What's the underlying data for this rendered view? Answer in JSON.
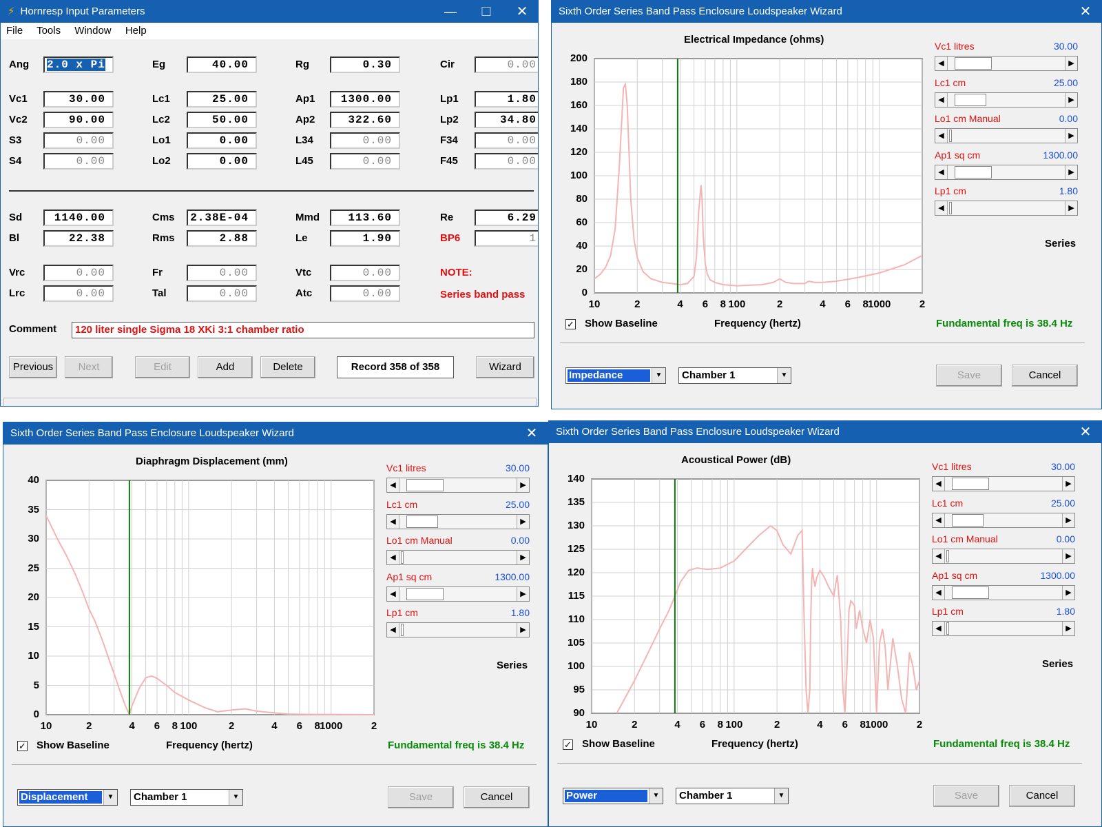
{
  "input_window": {
    "title": "Hornresp   Input Parameters",
    "menu": [
      "File",
      "Tools",
      "Window",
      "Help"
    ],
    "rows1": [
      [
        {
          "l": "Ang",
          "v": "2.0 x Pi",
          "sel": true
        },
        {
          "l": "Eg",
          "v": "40.00"
        },
        {
          "l": "Rg",
          "v": "0.30"
        },
        {
          "l": "Cir",
          "v": "0.00",
          "dim": true
        }
      ]
    ],
    "rows2": [
      [
        {
          "l": "Vc1",
          "v": "30.00"
        },
        {
          "l": "Lc1",
          "v": "25.00"
        },
        {
          "l": "Ap1",
          "v": "1300.00"
        },
        {
          "l": "Lp1",
          "v": "1.80"
        }
      ],
      [
        {
          "l": "Vc2",
          "v": "90.00"
        },
        {
          "l": "Lc2",
          "v": "50.00"
        },
        {
          "l": "Ap2",
          "v": "322.60"
        },
        {
          "l": "Lp2",
          "v": "34.80"
        }
      ],
      [
        {
          "l": "S3",
          "v": "0.00",
          "dim": true
        },
        {
          "l": "Lo1",
          "v": "0.00"
        },
        {
          "l": "L34",
          "v": "0.00",
          "dim": true
        },
        {
          "l": "F34",
          "v": "0.00",
          "dim": true
        }
      ],
      [
        {
          "l": "S4",
          "v": "0.00",
          "dim": true
        },
        {
          "l": "Lo2",
          "v": "0.00"
        },
        {
          "l": "L45",
          "v": "0.00",
          "dim": true
        },
        {
          "l": "F45",
          "v": "0.00",
          "dim": true
        }
      ]
    ],
    "rows3": [
      [
        {
          "l": "Sd",
          "v": "1140.00"
        },
        {
          "l": "Cms",
          "v": "2.38E-04"
        },
        {
          "l": "Mmd",
          "v": "113.60"
        },
        {
          "l": "Re",
          "v": "6.29"
        }
      ],
      [
        {
          "l": "Bl",
          "v": "22.38"
        },
        {
          "l": "Rms",
          "v": "2.88"
        },
        {
          "l": "Le",
          "v": "1.90"
        },
        {
          "l": "BP6",
          "v": "1",
          "red": true,
          "dim": true
        }
      ]
    ],
    "rows4": [
      [
        {
          "l": "Vrc",
          "v": "0.00",
          "dim": true
        },
        {
          "l": "Fr",
          "v": "0.00",
          "dim": true
        },
        {
          "l": "Vtc",
          "v": "0.00",
          "dim": true
        }
      ],
      [
        {
          "l": "Lrc",
          "v": "0.00",
          "dim": true
        },
        {
          "l": "Tal",
          "v": "0.00",
          "dim": true
        },
        {
          "l": "Atc",
          "v": "0.00",
          "dim": true
        }
      ]
    ],
    "note_label": "NOTE:",
    "note_text": "Series band pass",
    "comment_label": "Comment",
    "comment": "120 liter single Sigma 18 XKi 3:1 chamber ratio",
    "buttons": {
      "previous": "Previous",
      "next": "Next",
      "edit": "Edit",
      "add": "Add",
      "delete": "Delete",
      "wizard": "Wizard"
    },
    "record": "Record 358 of 358"
  },
  "wizard_title": "Sixth Order Series Band Pass Enclosure Loudspeaker Wizard",
  "controls": [
    {
      "label": "Vc1  litres",
      "value": "30.00"
    },
    {
      "label": "Lc1  cm",
      "value": "25.00"
    },
    {
      "label": "Lo1  cm  Manual",
      "value": "0.00"
    },
    {
      "label": "Ap1  sq cm",
      "value": "1300.00"
    },
    {
      "label": "Lp1  cm",
      "value": "1.80"
    }
  ],
  "series_label": "Series",
  "show_baseline": "Show Baseline",
  "freq_label": "Frequency (hertz)",
  "fundamental": "Fundamental freq is 38.4 Hz",
  "save": "Save",
  "cancel": "Cancel",
  "chamber": "Chamber 1",
  "x_ticks": [
    "10",
    "2",
    "4",
    "6",
    "8",
    "100",
    "2",
    "4",
    "6",
    "8",
    "1000",
    "2"
  ],
  "colors": {
    "titlebar": "#1560b0",
    "curve": "#f4b4b4",
    "marker": "#0a7a0a",
    "label_red": "#e01010",
    "value_blue": "#1a4fd8"
  },
  "chart_data": [
    {
      "type": "line",
      "title": "Electrical Impedance (ohms)",
      "xlabel": "Frequency (hertz)",
      "ylabel": "",
      "x_scale": "log",
      "xlim": [
        10,
        2000
      ],
      "ylim": [
        0,
        200
      ],
      "y_ticks": [
        "200",
        "180",
        "160",
        "140",
        "120",
        "100",
        "80",
        "60",
        "40",
        "20",
        "0"
      ],
      "marker_x": 38.4,
      "mode": "Impedance",
      "x": [
        10,
        11,
        12,
        13,
        14,
        15,
        16,
        16.5,
        17,
        17.5,
        18,
        19,
        20,
        22,
        25,
        30,
        35,
        40,
        45,
        50,
        52,
        54,
        56,
        57,
        58,
        60,
        62,
        65,
        70,
        80,
        90,
        100,
        120,
        150,
        180,
        200,
        220,
        250,
        300,
        320,
        350,
        400,
        500,
        700,
        1000,
        1500,
        2000
      ],
      "y": [
        12,
        16,
        22,
        32,
        55,
        110,
        175,
        178,
        160,
        120,
        80,
        45,
        30,
        18,
        12,
        9,
        8,
        7,
        8,
        14,
        30,
        70,
        92,
        80,
        50,
        25,
        16,
        11,
        9,
        7,
        6.5,
        6,
        6.5,
        7,
        9,
        12,
        9,
        8,
        8,
        10,
        9,
        9,
        10,
        13,
        17,
        24,
        32
      ]
    },
    {
      "type": "line",
      "title": "Diaphragm Displacement (mm)",
      "xlabel": "Frequency (hertz)",
      "ylabel": "",
      "x_scale": "log",
      "xlim": [
        10,
        2000
      ],
      "ylim": [
        0,
        40
      ],
      "y_ticks": [
        "40",
        "35",
        "30",
        "25",
        "20",
        "15",
        "10",
        "5",
        "0"
      ],
      "marker_x": 38.4,
      "mode": "Displacement",
      "x": [
        10,
        12,
        14,
        16,
        18,
        20,
        22,
        25,
        28,
        30,
        33,
        36,
        38.4,
        40,
        45,
        50,
        55,
        60,
        70,
        80,
        100,
        130,
        160,
        200,
        250,
        300,
        400,
        500,
        700,
        1000,
        2000
      ],
      "y": [
        34,
        30,
        27,
        24,
        21,
        18,
        16,
        12.5,
        9,
        7,
        4,
        1.5,
        0,
        1.5,
        4.5,
        6.3,
        6.6,
        6.2,
        5,
        3.8,
        2.5,
        1.2,
        0.5,
        0.8,
        1,
        0.6,
        0.3,
        0.1,
        0.05,
        0.02,
        0
      ]
    },
    {
      "type": "line",
      "title": "Acoustical Power (dB)",
      "xlabel": "Frequency (hertz)",
      "ylabel": "",
      "x_scale": "log",
      "xlim": [
        10,
        2000
      ],
      "ylim": [
        90,
        140
      ],
      "y_ticks": [
        "140",
        "135",
        "130",
        "125",
        "120",
        "115",
        "110",
        "105",
        "100",
        "95",
        "90"
      ],
      "marker_x": 38.4,
      "mode": "Power",
      "x": [
        15,
        20,
        25,
        30,
        35,
        38.4,
        42,
        48,
        55,
        65,
        80,
        100,
        120,
        150,
        180,
        200,
        220,
        250,
        280,
        300,
        310,
        320,
        330,
        340,
        345,
        350,
        355,
        360,
        370,
        380,
        400,
        430,
        460,
        500,
        530,
        560,
        580,
        600,
        620,
        640,
        660,
        700,
        720,
        760,
        800,
        850,
        900,
        950,
        1000,
        1050,
        1100,
        1150,
        1200,
        1300,
        1400,
        1500,
        1600,
        1700,
        1800,
        1900,
        2000
      ],
      "y": [
        90,
        97,
        103,
        108,
        112,
        115,
        118,
        120.5,
        121,
        120.7,
        121,
        122.5,
        125,
        128,
        130,
        129,
        126,
        124,
        128,
        129,
        110,
        95,
        90,
        95,
        110,
        118,
        121,
        119,
        117,
        119,
        120.5,
        119,
        117,
        115,
        119.5,
        110,
        95,
        90,
        100,
        112,
        114,
        113,
        108,
        112,
        108,
        105,
        110,
        106,
        90,
        105,
        108,
        104,
        95,
        106,
        100,
        93,
        90,
        103,
        100,
        95,
        97
      ]
    }
  ]
}
